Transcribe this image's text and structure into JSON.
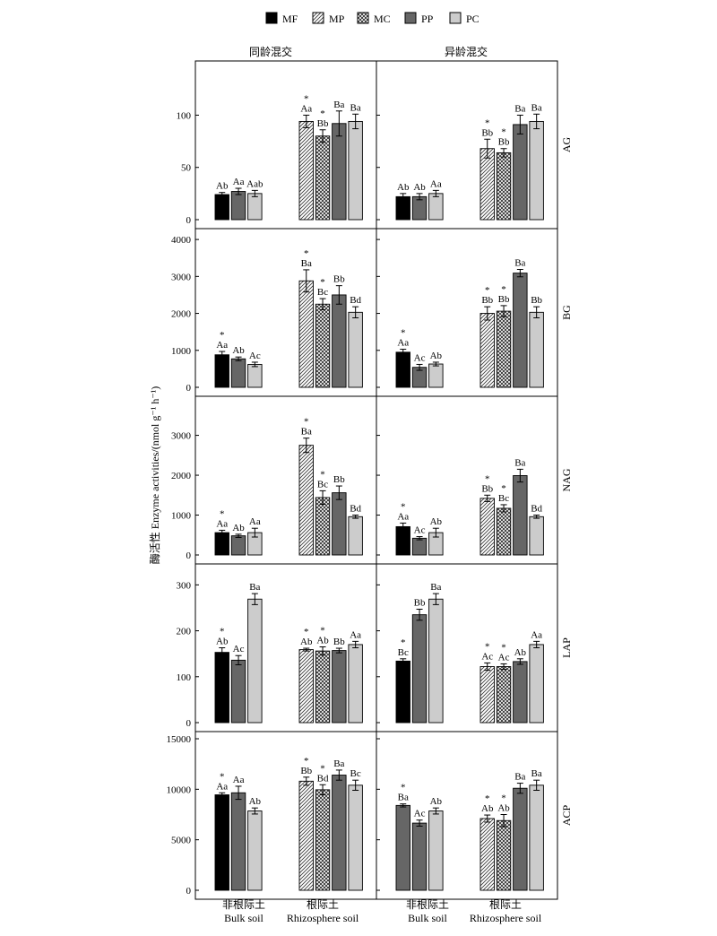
{
  "legend": [
    "MF",
    "MP",
    "MC",
    "PP",
    "PC"
  ],
  "column_titles": [
    "同龄混交",
    "异龄混交"
  ],
  "x_labels": [
    {
      "zh": "非根际土",
      "en": "Bulk soil"
    },
    {
      "zh": "根际土",
      "en": "Rhizosphere soil"
    }
  ],
  "y_axis_label": "酶活性 Enzyme activities/(nmol g⁻¹ h⁻¹)",
  "colors": {
    "MF": "#000000",
    "MP": "#ffffff",
    "MC": "#ffffff",
    "PP": "#666666",
    "PC": "#cccccc"
  },
  "chart_data": [
    {
      "type": "bar",
      "enzyme": "AG",
      "column": "同龄混交",
      "ylim": [
        0,
        145
      ],
      "yticks": [
        0,
        50,
        100
      ],
      "groups": [
        {
          "name": "非根际土",
          "bars": [
            {
              "series": "MF",
              "value": 24,
              "err": 2,
              "label": "Ab",
              "star": false
            },
            {
              "series": "PP",
              "value": 27,
              "err": 3,
              "label": "Aa",
              "star": false
            },
            {
              "series": "PC",
              "value": 25,
              "err": 3,
              "label": "Aab",
              "star": false
            }
          ]
        },
        {
          "name": "根际土",
          "bars": [
            {
              "series": "MP",
              "value": 94,
              "err": 6,
              "label": "Aa",
              "star": true
            },
            {
              "series": "MC",
              "value": 80,
              "err": 6,
              "label": "Bb",
              "star": true
            },
            {
              "series": "PP",
              "value": 92,
              "err": 12,
              "label": "Ba",
              "star": false
            },
            {
              "series": "PC",
              "value": 94,
              "err": 7,
              "label": "Ba",
              "star": false
            }
          ]
        }
      ]
    },
    {
      "type": "bar",
      "enzyme": "AG",
      "column": "异龄混交",
      "ylim": [
        0,
        145
      ],
      "yticks": [
        0,
        50,
        100
      ],
      "groups": [
        {
          "name": "非根际土",
          "bars": [
            {
              "series": "MF",
              "value": 22,
              "err": 3,
              "label": "Ab",
              "star": false
            },
            {
              "series": "PP",
              "value": 22,
              "err": 3,
              "label": "Ab",
              "star": false
            },
            {
              "series": "PC",
              "value": 25,
              "err": 3,
              "label": "Aa",
              "star": false
            }
          ]
        },
        {
          "name": "根际土",
          "bars": [
            {
              "series": "MP",
              "value": 68,
              "err": 9,
              "label": "Bb",
              "star": true
            },
            {
              "series": "MC",
              "value": 64,
              "err": 4,
              "label": "Bb",
              "star": true
            },
            {
              "series": "PP",
              "value": 91,
              "err": 9,
              "label": "Ba",
              "star": false
            },
            {
              "series": "PC",
              "value": 94,
              "err": 7,
              "label": "Ba",
              "star": false
            }
          ]
        }
      ]
    },
    {
      "type": "bar",
      "enzyme": "BG",
      "column": "同龄混交",
      "ylim": [
        0,
        4100
      ],
      "yticks": [
        0,
        1000,
        2000,
        3000,
        4000
      ],
      "groups": [
        {
          "name": "非根际土",
          "bars": [
            {
              "series": "MF",
              "value": 880,
              "err": 90,
              "label": "Aa",
              "star": true
            },
            {
              "series": "PP",
              "value": 770,
              "err": 50,
              "label": "Ab",
              "star": false
            },
            {
              "series": "PC",
              "value": 620,
              "err": 60,
              "label": "Ac",
              "star": false
            }
          ]
        },
        {
          "name": "根际土",
          "bars": [
            {
              "series": "MP",
              "value": 2880,
              "err": 300,
              "label": "Ba",
              "star": true
            },
            {
              "series": "MC",
              "value": 2250,
              "err": 150,
              "label": "Bc",
              "star": true
            },
            {
              "series": "PP",
              "value": 2500,
              "err": 250,
              "label": "Bb",
              "star": false
            },
            {
              "series": "PC",
              "value": 2030,
              "err": 150,
              "label": "Bd",
              "star": false
            }
          ]
        }
      ]
    },
    {
      "type": "bar",
      "enzyme": "BG",
      "column": "异龄混交",
      "ylim": [
        0,
        4100
      ],
      "yticks": [
        0,
        1000,
        2000,
        3000,
        4000
      ],
      "groups": [
        {
          "name": "非根际土",
          "bars": [
            {
              "series": "MF",
              "value": 950,
              "err": 80,
              "label": "Aa",
              "star": true
            },
            {
              "series": "PP",
              "value": 540,
              "err": 80,
              "label": "Ac",
              "star": false
            },
            {
              "series": "PC",
              "value": 630,
              "err": 50,
              "label": "Ab",
              "star": false
            }
          ]
        },
        {
          "name": "根际土",
          "bars": [
            {
              "series": "MP",
              "value": 2000,
              "err": 180,
              "label": "Bb",
              "star": true
            },
            {
              "series": "MC",
              "value": 2060,
              "err": 150,
              "label": "Bb",
              "star": true
            },
            {
              "series": "PP",
              "value": 3090,
              "err": 100,
              "label": "Ba",
              "star": false
            },
            {
              "series": "PC",
              "value": 2030,
              "err": 150,
              "label": "Bb",
              "star": false
            }
          ]
        }
      ]
    },
    {
      "type": "bar",
      "enzyme": "NAG",
      "column": "同龄混交",
      "ylim": [
        0,
        3800
      ],
      "yticks": [
        0,
        1000,
        2000,
        3000
      ],
      "groups": [
        {
          "name": "非根际土",
          "bars": [
            {
              "series": "MF",
              "value": 560,
              "err": 60,
              "label": "Aa",
              "star": true
            },
            {
              "series": "PP",
              "value": 480,
              "err": 40,
              "label": "Ab",
              "star": false
            },
            {
              "series": "PC",
              "value": 560,
              "err": 110,
              "label": "Aa",
              "star": false
            }
          ]
        },
        {
          "name": "根际土",
          "bars": [
            {
              "series": "MP",
              "value": 2750,
              "err": 180,
              "label": "Ba",
              "star": true
            },
            {
              "series": "MC",
              "value": 1440,
              "err": 170,
              "label": "Bc",
              "star": true
            },
            {
              "series": "PP",
              "value": 1560,
              "err": 170,
              "label": "Bb",
              "star": false
            },
            {
              "series": "PC",
              "value": 960,
              "err": 40,
              "label": "Bd",
              "star": false
            }
          ]
        }
      ]
    },
    {
      "type": "bar",
      "enzyme": "NAG",
      "column": "异龄混交",
      "ylim": [
        0,
        3800
      ],
      "yticks": [
        0,
        1000,
        2000,
        3000
      ],
      "groups": [
        {
          "name": "非根际土",
          "bars": [
            {
              "series": "MF",
              "value": 710,
              "err": 90,
              "label": "Aa",
              "star": true
            },
            {
              "series": "PP",
              "value": 420,
              "err": 40,
              "label": "Ac",
              "star": false
            },
            {
              "series": "PC",
              "value": 560,
              "err": 110,
              "label": "Ab",
              "star": false
            }
          ]
        },
        {
          "name": "根际土",
          "bars": [
            {
              "series": "MP",
              "value": 1420,
              "err": 80,
              "label": "Bb",
              "star": true
            },
            {
              "series": "MC",
              "value": 1170,
              "err": 90,
              "label": "Bc",
              "star": true
            },
            {
              "series": "PP",
              "value": 1990,
              "err": 160,
              "label": "Ba",
              "star": false
            },
            {
              "series": "PC",
              "value": 960,
              "err": 40,
              "label": "Bd",
              "star": false
            }
          ]
        }
      ]
    },
    {
      "type": "bar",
      "enzyme": "LAP",
      "column": "同龄混交",
      "ylim": [
        0,
        330
      ],
      "yticks": [
        0,
        100,
        200,
        300
      ],
      "groups": [
        {
          "name": "非根际土",
          "bars": [
            {
              "series": "MF",
              "value": 153,
              "err": 10,
              "label": "Ab",
              "star": true
            },
            {
              "series": "PP",
              "value": 136,
              "err": 10,
              "label": "Ac",
              "star": false
            },
            {
              "series": "PC",
              "value": 269,
              "err": 12,
              "label": "Ba",
              "star": false
            }
          ]
        },
        {
          "name": "根际土",
          "bars": [
            {
              "series": "MP",
              "value": 159,
              "err": 3,
              "label": "Ab",
              "star": true
            },
            {
              "series": "MC",
              "value": 156,
              "err": 9,
              "label": "Ab",
              "star": true
            },
            {
              "series": "PP",
              "value": 157,
              "err": 5,
              "label": "Bb",
              "star": false
            },
            {
              "series": "PC",
              "value": 170,
              "err": 7,
              "label": "Aa",
              "star": false
            }
          ]
        }
      ]
    },
    {
      "type": "bar",
      "enzyme": "LAP",
      "column": "异龄混交",
      "ylim": [
        0,
        330
      ],
      "yticks": [
        0,
        100,
        200,
        300
      ],
      "groups": [
        {
          "name": "非根际土",
          "bars": [
            {
              "series": "MF",
              "value": 134,
              "err": 5,
              "label": "Bc",
              "star": true
            },
            {
              "series": "PP",
              "value": 235,
              "err": 12,
              "label": "Bb",
              "star": false
            },
            {
              "series": "PC",
              "value": 269,
              "err": 12,
              "label": "Ba",
              "star": false
            }
          ]
        },
        {
          "name": "根际土",
          "bars": [
            {
              "series": "MP",
              "value": 122,
              "err": 8,
              "label": "Ac",
              "star": true
            },
            {
              "series": "MC",
              "value": 122,
              "err": 6,
              "label": "Ac",
              "star": true
            },
            {
              "series": "PP",
              "value": 133,
              "err": 6,
              "label": "Ab",
              "star": false
            },
            {
              "series": "PC",
              "value": 170,
              "err": 7,
              "label": "Aa",
              "star": false
            }
          ]
        }
      ]
    },
    {
      "type": "bar",
      "enzyme": "ACP",
      "column": "同龄混交",
      "ylim": [
        0,
        15000
      ],
      "yticks": [
        0,
        5000,
        10000,
        15000
      ],
      "groups": [
        {
          "name": "非根际土",
          "bars": [
            {
              "series": "MF",
              "value": 9450,
              "err": 200,
              "label": "Aa",
              "star": true
            },
            {
              "series": "PP",
              "value": 9650,
              "err": 650,
              "label": "Aa",
              "star": false
            },
            {
              "series": "PC",
              "value": 7850,
              "err": 300,
              "label": "Ab",
              "star": false
            }
          ]
        },
        {
          "name": "根际土",
          "bars": [
            {
              "series": "MP",
              "value": 10800,
              "err": 400,
              "label": "Bb",
              "star": true
            },
            {
              "series": "MC",
              "value": 9950,
              "err": 500,
              "label": "Bd",
              "star": true
            },
            {
              "series": "PP",
              "value": 11400,
              "err": 500,
              "label": "Ba",
              "star": false
            },
            {
              "series": "PC",
              "value": 10400,
              "err": 500,
              "label": "Bc",
              "star": false
            }
          ]
        }
      ]
    },
    {
      "type": "bar",
      "enzyme": "ACP",
      "column": "异龄混交",
      "ylim": [
        0,
        15000
      ],
      "yticks": [
        0,
        5000,
        10000,
        15000
      ],
      "groups": [
        {
          "name": "非根际土",
          "bars": [
            {
              "series": "PP",
              "value": 8400,
              "err": 150,
              "label": "Ba",
              "star": true
            },
            {
              "series": "PP",
              "value": 6650,
              "err": 300,
              "label": "Ac",
              "star": false
            },
            {
              "series": "PC",
              "value": 7850,
              "err": 300,
              "label": "Ab",
              "star": false
            }
          ]
        },
        {
          "name": "根际土",
          "bars": [
            {
              "series": "MP",
              "value": 7100,
              "err": 350,
              "label": "Ab",
              "star": true
            },
            {
              "series": "MC",
              "value": 6900,
              "err": 600,
              "label": "Ab",
              "star": true
            },
            {
              "series": "PP",
              "value": 10100,
              "err": 500,
              "label": "Ba",
              "star": false
            },
            {
              "series": "PC",
              "value": 10400,
              "err": 500,
              "label": "Ba",
              "star": false
            }
          ]
        }
      ]
    }
  ]
}
